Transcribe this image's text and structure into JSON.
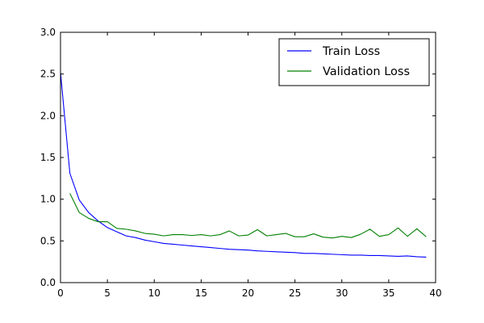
{
  "chart_data": {
    "type": "line",
    "title": "",
    "xlabel": "",
    "ylabel": "",
    "xlim": [
      0,
      40
    ],
    "ylim": [
      0.0,
      3.0
    ],
    "xticks": [
      0,
      5,
      10,
      15,
      20,
      25,
      30,
      35,
      40
    ],
    "yticks": [
      0.0,
      0.5,
      1.0,
      1.5,
      2.0,
      2.5,
      3.0
    ],
    "xtick_labels": [
      "0",
      "5",
      "10",
      "15",
      "20",
      "25",
      "30",
      "35",
      "40"
    ],
    "ytick_labels": [
      "0.0",
      "0.5",
      "1.0",
      "1.5",
      "2.0",
      "2.5",
      "3.0"
    ],
    "grid": false,
    "legend_position": "top-right",
    "series": [
      {
        "name": "Train Loss",
        "color": "#0000ff",
        "x": [
          0,
          1,
          2,
          3,
          4,
          5,
          6,
          7,
          8,
          9,
          10,
          11,
          12,
          13,
          14,
          15,
          16,
          17,
          18,
          19,
          20,
          21,
          22,
          23,
          24,
          25,
          26,
          27,
          28,
          29,
          30,
          31,
          32,
          33,
          34,
          35,
          36,
          37,
          38,
          39
        ],
        "y": [
          2.52,
          1.31,
          0.99,
          0.84,
          0.74,
          0.66,
          0.61,
          0.56,
          0.54,
          0.51,
          0.49,
          0.47,
          0.46,
          0.45,
          0.44,
          0.43,
          0.42,
          0.41,
          0.4,
          0.395,
          0.39,
          0.38,
          0.375,
          0.37,
          0.365,
          0.36,
          0.35,
          0.35,
          0.345,
          0.34,
          0.335,
          0.33,
          0.33,
          0.325,
          0.325,
          0.32,
          0.315,
          0.32,
          0.31,
          0.305
        ]
      },
      {
        "name": "Validation Loss",
        "color": "#008000",
        "x": [
          1,
          2,
          3,
          4,
          5,
          6,
          7,
          8,
          9,
          10,
          11,
          12,
          13,
          14,
          15,
          16,
          17,
          18,
          19,
          20,
          21,
          22,
          23,
          24,
          25,
          26,
          27,
          28,
          29,
          30,
          31,
          32,
          33,
          34,
          35,
          36,
          37,
          38,
          39
        ],
        "y": [
          1.07,
          0.84,
          0.77,
          0.73,
          0.73,
          0.65,
          0.64,
          0.62,
          0.59,
          0.58,
          0.56,
          0.575,
          0.575,
          0.565,
          0.575,
          0.56,
          0.575,
          0.62,
          0.56,
          0.57,
          0.635,
          0.56,
          0.575,
          0.59,
          0.55,
          0.55,
          0.585,
          0.545,
          0.535,
          0.555,
          0.54,
          0.58,
          0.64,
          0.555,
          0.575,
          0.655,
          0.555,
          0.645,
          0.55
        ]
      }
    ]
  }
}
